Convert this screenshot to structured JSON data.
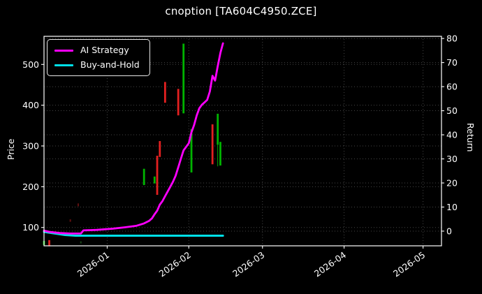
{
  "colors": {
    "up": "#00b400",
    "down": "#e32020",
    "up_faint": "#1e5a1e",
    "down_faint": "#7a1414",
    "ai_line": "#ff00ff",
    "bh_line": "#00e0e8",
    "grid": "#464646",
    "spine": "#ffffff",
    "text": "#ffffff",
    "background": "#000000"
  },
  "chart_data": {
    "type": "candlestick+line",
    "title": "cnoption [TA604C4950.ZCE]",
    "xlabel": "",
    "grid": true,
    "legend_position": "upper-left",
    "x_axis": {
      "start": "2025-12-08",
      "end": "2026-05-08",
      "ticks": [
        {
          "date": "2026-01-01",
          "label": "2026-01"
        },
        {
          "date": "2026-02-01",
          "label": "2026-02"
        },
        {
          "date": "2026-03-01",
          "label": "2026-03"
        },
        {
          "date": "2026-04-01",
          "label": "2026-04"
        },
        {
          "date": "2026-05-01",
          "label": "2026-05"
        }
      ]
    },
    "price_axis": {
      "label": "Price",
      "min": 55,
      "max": 569,
      "ticks": [
        100,
        200,
        300,
        400,
        500
      ]
    },
    "return_axis": {
      "label": "Return",
      "min": -6.1,
      "max": 80.9,
      "ticks": [
        0,
        10,
        20,
        30,
        40,
        50,
        60,
        70,
        80
      ]
    },
    "series": [
      {
        "name": "AI Strategy",
        "axis": "return",
        "color": "#ff00ff",
        "points": [
          [
            "2025-12-08",
            0.2
          ],
          [
            "2025-12-10",
            -0.3
          ],
          [
            "2025-12-14",
            -0.8
          ],
          [
            "2025-12-18",
            -1.0
          ],
          [
            "2025-12-22",
            -1.0
          ],
          [
            "2025-12-23",
            0.3
          ],
          [
            "2025-12-28",
            0.5
          ],
          [
            "2026-01-03",
            1.0
          ],
          [
            "2026-01-08",
            1.6
          ],
          [
            "2026-01-12",
            2.2
          ],
          [
            "2026-01-15",
            3.2
          ],
          [
            "2026-01-17",
            4.3
          ],
          [
            "2026-01-18",
            5.3
          ],
          [
            "2026-01-19",
            7.0
          ],
          [
            "2026-01-20",
            8.5
          ],
          [
            "2026-01-21",
            11.0
          ],
          [
            "2026-01-22",
            12.5
          ],
          [
            "2026-01-23",
            14.5
          ],
          [
            "2026-01-24",
            16.5
          ],
          [
            "2026-01-25",
            18.5
          ],
          [
            "2026-01-26",
            20.5
          ],
          [
            "2026-01-27",
            23.0
          ],
          [
            "2026-01-28",
            26.5
          ],
          [
            "2026-01-29",
            30.0
          ],
          [
            "2026-01-30",
            33.5
          ],
          [
            "2026-02-01",
            36.5
          ],
          [
            "2026-02-02",
            41.0
          ],
          [
            "2026-02-03",
            44.0
          ],
          [
            "2026-02-04",
            48.0
          ],
          [
            "2026-02-05",
            51.0
          ],
          [
            "2026-02-06",
            52.5
          ],
          [
            "2026-02-07",
            53.5
          ],
          [
            "2026-02-08",
            54.5
          ],
          [
            "2026-02-09",
            58.0
          ],
          [
            "2026-02-10",
            64.5
          ],
          [
            "2026-02-11",
            62.5
          ],
          [
            "2026-02-12",
            68.5
          ],
          [
            "2026-02-13",
            74.0
          ],
          [
            "2026-02-14",
            78.0
          ]
        ]
      },
      {
        "name": "Buy-and-Hold",
        "axis": "return",
        "color": "#00e0e8",
        "points": [
          [
            "2025-12-08",
            -0.3
          ],
          [
            "2025-12-16",
            -1.6
          ],
          [
            "2025-12-20",
            -1.9
          ],
          [
            "2026-02-14",
            -1.9
          ]
        ]
      }
    ],
    "candles": [
      {
        "date": "2025-12-08",
        "dir": "up",
        "high": 67,
        "low": 57
      },
      {
        "date": "2025-12-10",
        "dir": "down",
        "high": 69,
        "low": 54
      },
      {
        "date": "2025-12-18",
        "dir": "down",
        "high": 120,
        "low": 114,
        "faint": true
      },
      {
        "date": "2025-12-21",
        "dir": "down",
        "high": 159,
        "low": 152,
        "faint": true
      },
      {
        "date": "2025-12-22",
        "dir": "up",
        "high": 66,
        "low": 61,
        "faint": true
      },
      {
        "date": "2026-01-15",
        "dir": "up",
        "high": 244,
        "low": 204
      },
      {
        "date": "2026-01-19",
        "dir": "up",
        "high": 225,
        "low": 208
      },
      {
        "date": "2026-01-20",
        "dir": "down",
        "high": 276,
        "low": 180
      },
      {
        "date": "2026-01-21",
        "dir": "down",
        "high": 312,
        "low": 273
      },
      {
        "date": "2026-01-23",
        "dir": "down",
        "high": 457,
        "low": 406
      },
      {
        "date": "2026-01-28",
        "dir": "down",
        "high": 440,
        "low": 375
      },
      {
        "date": "2026-01-30",
        "dir": "up",
        "high": 551,
        "low": 380
      },
      {
        "date": "2026-02-02",
        "dir": "up",
        "high": 341,
        "low": 235
      },
      {
        "date": "2026-02-10",
        "dir": "down",
        "high": 353,
        "low": 255
      },
      {
        "date": "2026-02-12",
        "dir": "up",
        "high": 379,
        "low": 303,
        "wick_low": 250
      },
      {
        "date": "2026-02-13",
        "dir": "up",
        "high": 310,
        "low": 252
      }
    ]
  }
}
